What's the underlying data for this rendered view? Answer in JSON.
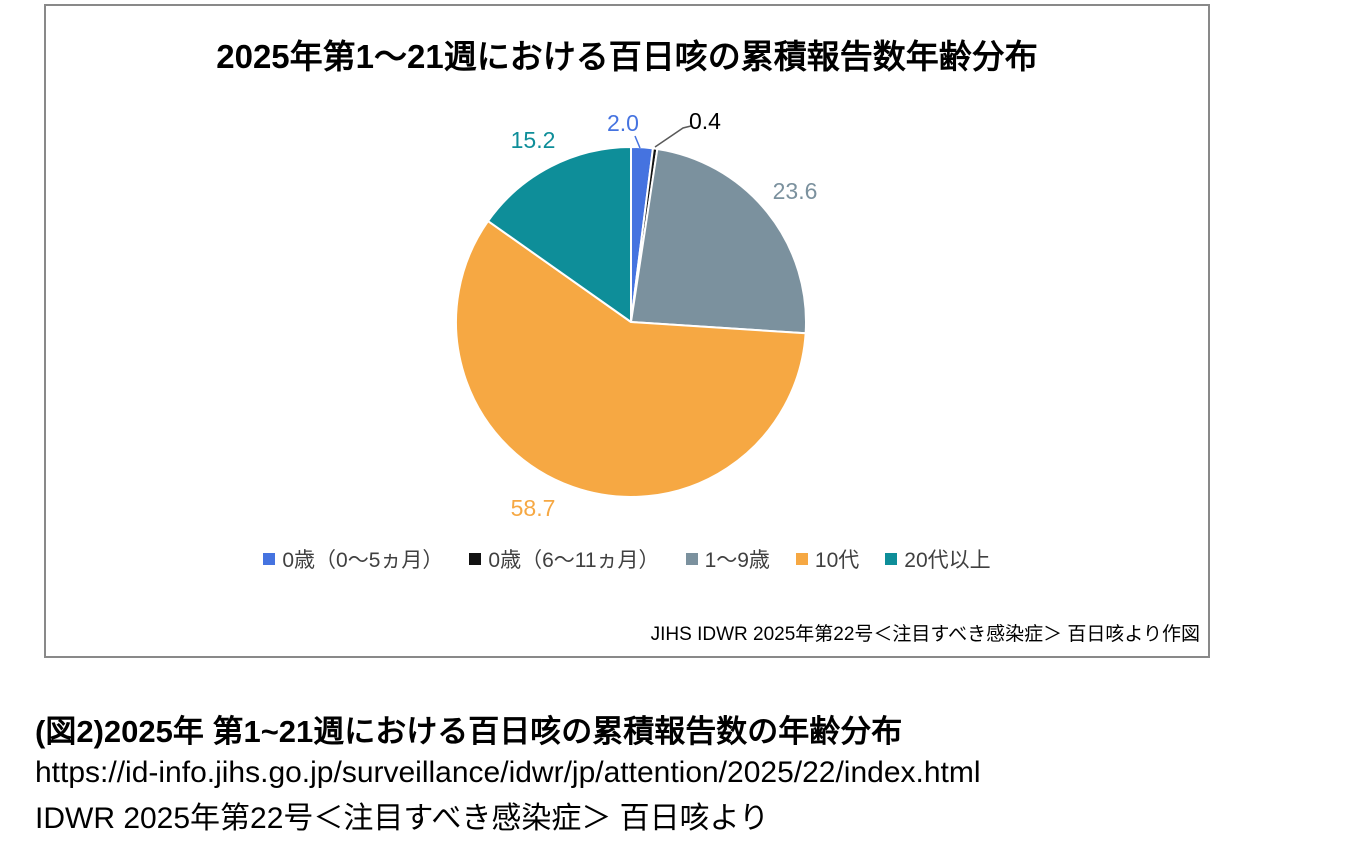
{
  "figure": {
    "title": "2025年第1～21週における百日咳の累積報告数年齢分布",
    "source_note": "JIHS IDWR 2025年第22号＜注目すべき感染症＞ 百日咳より作図"
  },
  "chart_data": {
    "type": "pie",
    "title": "2025年第1～21週における百日咳の累積報告数年齢分布",
    "unit": "percent",
    "categories": [
      "0歳（0〜5ヵ月）",
      "0歳（6〜11ヵ月）",
      "1〜9歳",
      "10代",
      "20代以上"
    ],
    "values": [
      2.0,
      0.4,
      23.6,
      58.7,
      15.2
    ],
    "data_labels": [
      "2.0",
      "0.4",
      "23.6",
      "58.7",
      "15.2"
    ],
    "colors": [
      "#4573E0",
      "#121212",
      "#7B919E",
      "#F6A843",
      "#0E8E99"
    ],
    "start_angle_deg": 0,
    "direction": "clockwise",
    "legend_position": "bottom"
  },
  "caption": {
    "heading": "(図2)2025年 第1~21週における百日咳の累積報告数の年齢分布",
    "url": "https://id-info.jihs.go.jp/surveillance/idwr/jp/attention/2025/22/index.html",
    "source_line": "IDWR 2025年第22号＜注目すべき感染症＞ 百日咳より"
  }
}
